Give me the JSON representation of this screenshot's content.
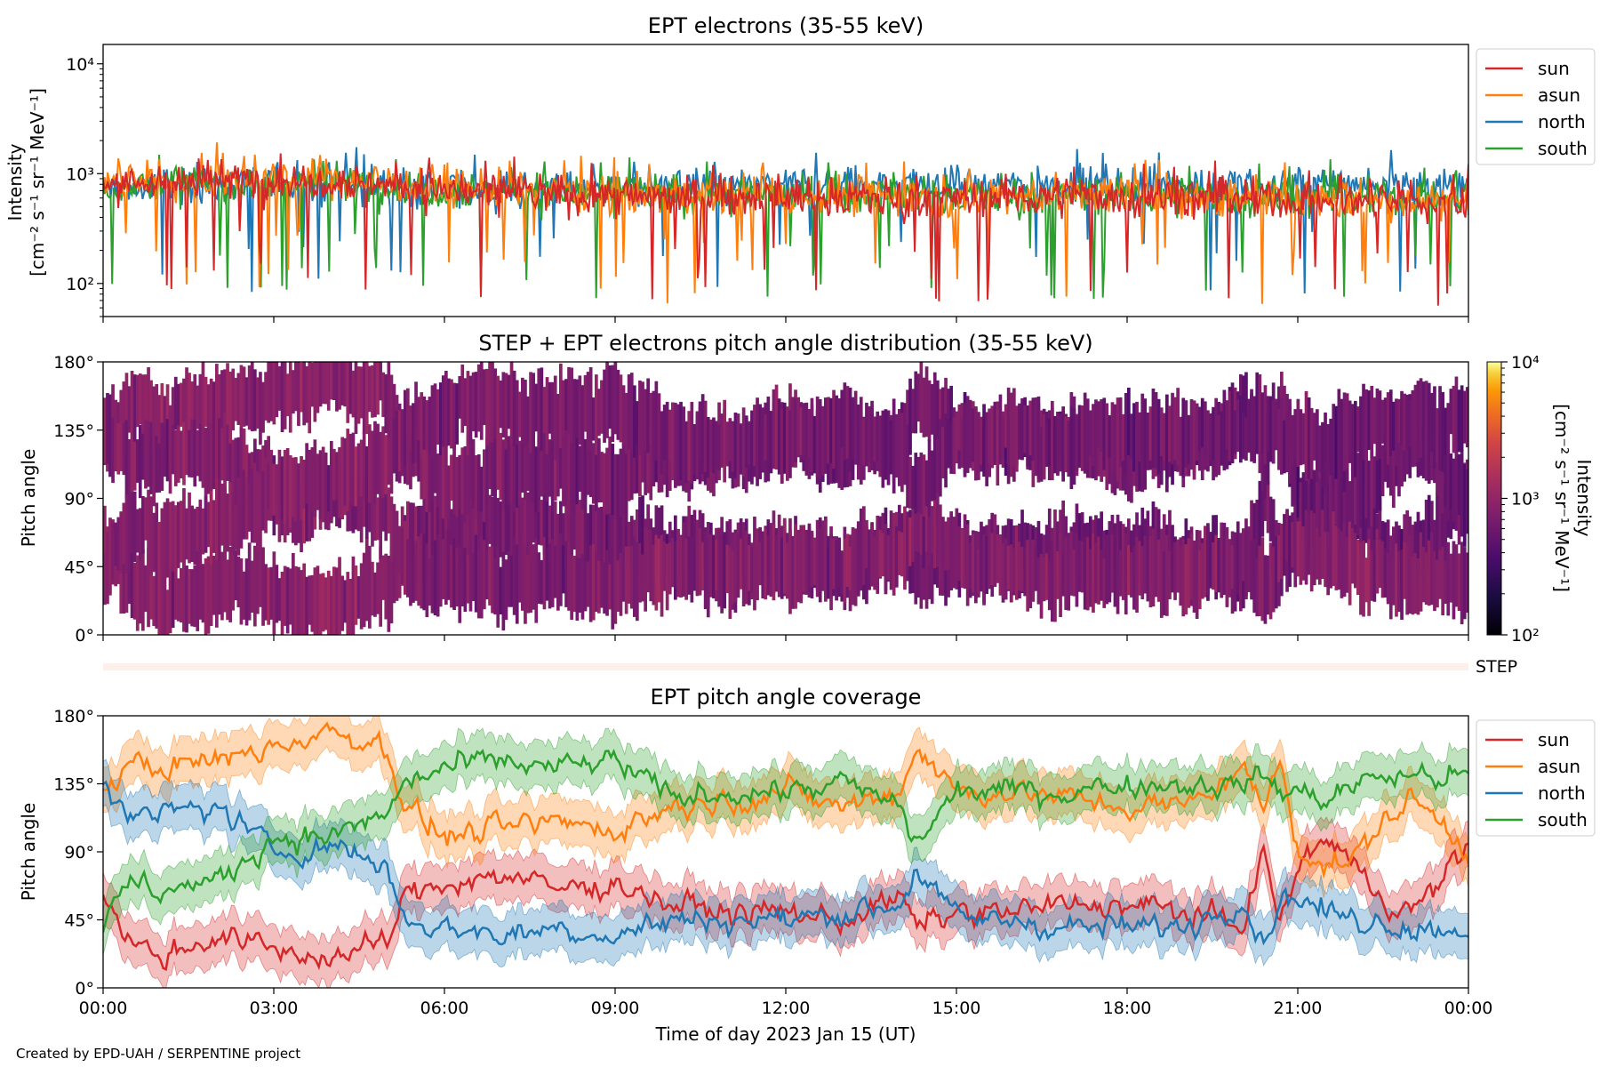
{
  "chart_data": [
    {
      "type": "line",
      "title": "EPT electrons (35-55 keV)",
      "ylabel": [
        "Intensity",
        "[cm⁻² s⁻¹ sr⁻¹ MeV⁻¹]"
      ],
      "yscale": "log",
      "ylim": [
        50,
        15000
      ],
      "yticks": [
        {
          "v": 100,
          "label": "10²"
        },
        {
          "v": 1000,
          "label": "10³"
        },
        {
          "v": 10000,
          "label": "10⁴"
        }
      ],
      "xlim": [
        0,
        24
      ],
      "legend": "outside-right",
      "series": [
        {
          "name": "sun",
          "color": "#d62728",
          "anchors": [
            [
              0,
              830
            ],
            [
              2,
              870
            ],
            [
              4,
              880
            ],
            [
              6,
              720
            ],
            [
              8,
              650
            ],
            [
              10,
              620
            ],
            [
              12,
              620
            ],
            [
              14,
              600
            ],
            [
              16,
              620
            ],
            [
              18,
              620
            ],
            [
              20,
              580
            ],
            [
              22,
              560
            ],
            [
              24,
              560
            ]
          ]
        },
        {
          "name": "asun",
          "color": "#ff7f0e",
          "anchors": [
            [
              0,
              850
            ],
            [
              2,
              880
            ],
            [
              4,
              900
            ],
            [
              6,
              760
            ],
            [
              8,
              690
            ],
            [
              10,
              650
            ],
            [
              12,
              640
            ],
            [
              14,
              620
            ],
            [
              16,
              640
            ],
            [
              18,
              640
            ],
            [
              20,
              600
            ],
            [
              22,
              580
            ],
            [
              24,
              580
            ]
          ]
        },
        {
          "name": "north",
          "color": "#1f77b4",
          "anchors": [
            [
              0,
              720
            ],
            [
              2,
              780
            ],
            [
              4,
              820
            ],
            [
              6,
              720
            ],
            [
              8,
              730
            ],
            [
              10,
              760
            ],
            [
              12,
              780
            ],
            [
              14,
              800
            ],
            [
              16,
              780
            ],
            [
              18,
              780
            ],
            [
              20,
              760
            ],
            [
              22,
              800
            ],
            [
              24,
              760
            ]
          ]
        },
        {
          "name": "south",
          "color": "#2ca02c",
          "anchors": [
            [
              0,
              780
            ],
            [
              2,
              830
            ],
            [
              4,
              850
            ],
            [
              6,
              720
            ],
            [
              8,
              680
            ],
            [
              10,
              660
            ],
            [
              12,
              660
            ],
            [
              14,
              640
            ],
            [
              16,
              650
            ],
            [
              18,
              640
            ],
            [
              20,
              620
            ],
            [
              22,
              600
            ],
            [
              24,
              600
            ]
          ]
        }
      ]
    },
    {
      "type": "heatmap",
      "title": "STEP + EPT electrons pitch angle distribution (35-55 keV)",
      "ylabel": "Pitch angle",
      "ylim": [
        0,
        180
      ],
      "yticks": [
        {
          "v": 0,
          "label": "0°"
        },
        {
          "v": 45,
          "label": "45°"
        },
        {
          "v": 90,
          "label": "90°"
        },
        {
          "v": 135,
          "label": "135°"
        },
        {
          "v": 180,
          "label": "180°"
        }
      ],
      "xlim": [
        0,
        24
      ],
      "colorbar": {
        "label": [
          "Intensity",
          "[cm⁻² s⁻¹ sr⁻¹ MeV⁻¹]"
        ],
        "scale": "log",
        "range": [
          100,
          10000
        ],
        "ticks": [
          {
            "v": 100,
            "label": "10²"
          },
          {
            "v": 1000,
            "label": "10³"
          },
          {
            "v": 10000,
            "label": "10⁴"
          }
        ],
        "colormap": "inferno"
      },
      "step_label": "STEP"
    },
    {
      "type": "line",
      "title": "EPT pitch angle coverage",
      "ylabel": "Pitch angle",
      "xlabel": "Time of day 2023 Jan 15 (UT)",
      "ylim": [
        0,
        180
      ],
      "yticks": [
        {
          "v": 0,
          "label": "0°"
        },
        {
          "v": 45,
          "label": "45°"
        },
        {
          "v": 90,
          "label": "90°"
        },
        {
          "v": 135,
          "label": "135°"
        },
        {
          "v": 180,
          "label": "180°"
        }
      ],
      "xlim": [
        0,
        24
      ],
      "xticks": [
        {
          "v": 0,
          "label": "00:00"
        },
        {
          "v": 3,
          "label": "03:00"
        },
        {
          "v": 6,
          "label": "06:00"
        },
        {
          "v": 9,
          "label": "09:00"
        },
        {
          "v": 12,
          "label": "12:00"
        },
        {
          "v": 15,
          "label": "15:00"
        },
        {
          "v": 18,
          "label": "18:00"
        },
        {
          "v": 21,
          "label": "21:00"
        },
        {
          "v": 24,
          "label": "00:00"
        }
      ],
      "legend": "outside-right",
      "series": [
        {
          "name": "sun",
          "color": "#d62728",
          "anchors": [
            [
              0,
              60
            ],
            [
              0.5,
              30
            ],
            [
              1,
              20
            ],
            [
              2,
              35
            ],
            [
              3,
              25
            ],
            [
              4,
              20
            ],
            [
              5,
              30
            ],
            [
              5.3,
              60
            ],
            [
              6,
              70
            ],
            [
              7,
              75
            ],
            [
              8,
              65
            ],
            [
              9,
              70
            ],
            [
              10,
              55
            ],
            [
              11,
              50
            ],
            [
              12,
              50
            ],
            [
              13,
              45
            ],
            [
              14,
              60
            ],
            [
              14.3,
              40
            ],
            [
              15,
              50
            ],
            [
              16,
              50
            ],
            [
              17,
              55
            ],
            [
              18,
              55
            ],
            [
              19,
              50
            ],
            [
              20,
              40
            ],
            [
              20.4,
              90
            ],
            [
              20.7,
              40
            ],
            [
              21,
              80
            ],
            [
              21.5,
              100
            ],
            [
              22,
              80
            ],
            [
              22.5,
              60
            ],
            [
              23,
              50
            ],
            [
              23.5,
              70
            ],
            [
              24,
              95
            ]
          ]
        },
        {
          "name": "asun",
          "color": "#ff7f0e",
          "anchors": [
            [
              0,
              130
            ],
            [
              0.5,
              150
            ],
            [
              1,
              145
            ],
            [
              2,
              150
            ],
            [
              3,
              160
            ],
            [
              4,
              170
            ],
            [
              5,
              160
            ],
            [
              5.3,
              120
            ],
            [
              6,
              100
            ],
            [
              7,
              105
            ],
            [
              8,
              110
            ],
            [
              9,
              105
            ],
            [
              10,
              120
            ],
            [
              11,
              125
            ],
            [
              12,
              130
            ],
            [
              13,
              120
            ],
            [
              14,
              130
            ],
            [
              14.3,
              160
            ],
            [
              15,
              130
            ],
            [
              16,
              130
            ],
            [
              17,
              125
            ],
            [
              18,
              120
            ],
            [
              19,
              120
            ],
            [
              20,
              145
            ],
            [
              20.4,
              120
            ],
            [
              20.7,
              150
            ],
            [
              21,
              95
            ],
            [
              21.5,
              80
            ],
            [
              22,
              85
            ],
            [
              22.5,
              110
            ],
            [
              23,
              125
            ],
            [
              23.5,
              110
            ],
            [
              24,
              90
            ]
          ]
        },
        {
          "name": "north",
          "color": "#1f77b4",
          "anchors": [
            [
              0,
              140
            ],
            [
              0.5,
              110
            ],
            [
              1,
              115
            ],
            [
              2,
              120
            ],
            [
              3,
              90
            ],
            [
              4,
              95
            ],
            [
              5,
              80
            ],
            [
              5.3,
              45
            ],
            [
              6,
              40
            ],
            [
              7,
              35
            ],
            [
              8,
              40
            ],
            [
              9,
              35
            ],
            [
              10,
              45
            ],
            [
              11,
              45
            ],
            [
              12,
              45
            ],
            [
              13,
              50
            ],
            [
              14,
              55
            ],
            [
              14.3,
              80
            ],
            [
              15,
              45
            ],
            [
              16,
              45
            ],
            [
              17,
              40
            ],
            [
              18,
              40
            ],
            [
              19,
              40
            ],
            [
              20,
              60
            ],
            [
              20.4,
              30
            ],
            [
              20.7,
              60
            ],
            [
              21,
              60
            ],
            [
              21.5,
              50
            ],
            [
              22,
              45
            ],
            [
              22.5,
              45
            ],
            [
              23,
              40
            ],
            [
              23.5,
              40
            ],
            [
              24,
              40
            ]
          ]
        },
        {
          "name": "south",
          "color": "#2ca02c",
          "anchors": [
            [
              0,
              40
            ],
            [
              0.5,
              70
            ],
            [
              1,
              65
            ],
            [
              2,
              70
            ],
            [
              3,
              100
            ],
            [
              4,
              100
            ],
            [
              5,
              115
            ],
            [
              5.3,
              135
            ],
            [
              6,
              145
            ],
            [
              7,
              150
            ],
            [
              8,
              145
            ],
            [
              9,
              150
            ],
            [
              10,
              125
            ],
            [
              11,
              130
            ],
            [
              12,
              130
            ],
            [
              13,
              135
            ],
            [
              14,
              120
            ],
            [
              14.3,
              95
            ],
            [
              15,
              130
            ],
            [
              16,
              130
            ],
            [
              17,
              130
            ],
            [
              18,
              135
            ],
            [
              19,
              135
            ],
            [
              20,
              135
            ],
            [
              20.4,
              140
            ],
            [
              20.7,
              130
            ],
            [
              21,
              130
            ],
            [
              21.5,
              125
            ],
            [
              22,
              135
            ],
            [
              22.5,
              140
            ],
            [
              23,
              140
            ],
            [
              23.5,
              140
            ],
            [
              24,
              140
            ]
          ]
        }
      ]
    }
  ],
  "credit": "Created by EPD-UAH / SERPENTINE project"
}
